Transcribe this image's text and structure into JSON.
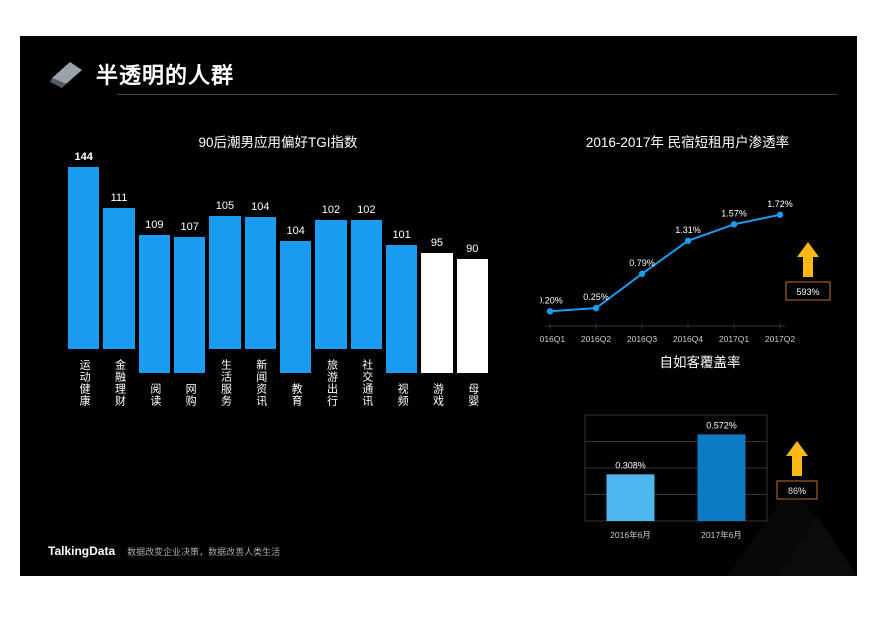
{
  "page_title": "半透明的人群",
  "brand": "TalkingData",
  "tagline": "数据改变企业决策，数据改善人类生活",
  "colors": {
    "bg": "#000000",
    "text": "#ffffff",
    "primary_bar": "#1a9cf0",
    "white_bar": "#ffffff",
    "line": "#1a9cf0",
    "cov_bar_light": "#4db8ef",
    "cov_bar_dark": "#0d7bc4",
    "grid": "#333333",
    "axis_text": "#cccccc",
    "rule": "#444444",
    "arrow": "#fdb814",
    "callout_border": "#c46e28"
  },
  "bar_chart": {
    "title": "90后潮男应用偏好TGI指数",
    "ymax": 150,
    "bar_colors": [
      "#1a9cf0",
      "#1a9cf0",
      "#1a9cf0",
      "#1a9cf0",
      "#1a9cf0",
      "#1a9cf0",
      "#1a9cf0",
      "#1a9cf0",
      "#1a9cf0",
      "#1a9cf0",
      "#ffffff",
      "#ffffff"
    ],
    "categories": [
      "运动健康",
      "金融理财",
      "阅读",
      "网购",
      "生活服务",
      "新闻资讯",
      "教育",
      "旅游出行",
      "社交通讯",
      "视频",
      "游戏",
      "母婴"
    ],
    "values": [
      144,
      111,
      109,
      107,
      105,
      104,
      104,
      102,
      102,
      101,
      95,
      90
    ]
  },
  "line_chart": {
    "title": "2016-2017年 民宿短租用户渗透率",
    "categories": [
      "2016Q1",
      "2016Q2",
      "2016Q3",
      "2016Q4",
      "2017Q1",
      "2017Q2"
    ],
    "values": [
      0.2,
      0.25,
      0.79,
      1.31,
      1.57,
      1.72
    ],
    "value_labels": [
      "0.20%",
      "0.25%",
      "0.79%",
      "1.31%",
      "1.57%",
      "1.72%"
    ],
    "ymin": 0.0,
    "ymax": 2.0,
    "line_color": "#1a9cf0",
    "marker": "circle",
    "callout": "593%",
    "callout_color": "#fdb814"
  },
  "coverage": {
    "title": "自如客覆盖率",
    "categories": [
      "2016年6月",
      "2017年6月"
    ],
    "values": [
      0.308,
      0.572
    ],
    "value_labels": [
      "0.308%",
      "0.572%"
    ],
    "ymax": 0.7,
    "bar_colors": [
      "#4db8ef",
      "#0d7bc4"
    ],
    "callout": "86%",
    "callout_color": "#fdb814"
  },
  "logo": {
    "fill1": "#9aa3ab",
    "fill2": "#555c63"
  }
}
